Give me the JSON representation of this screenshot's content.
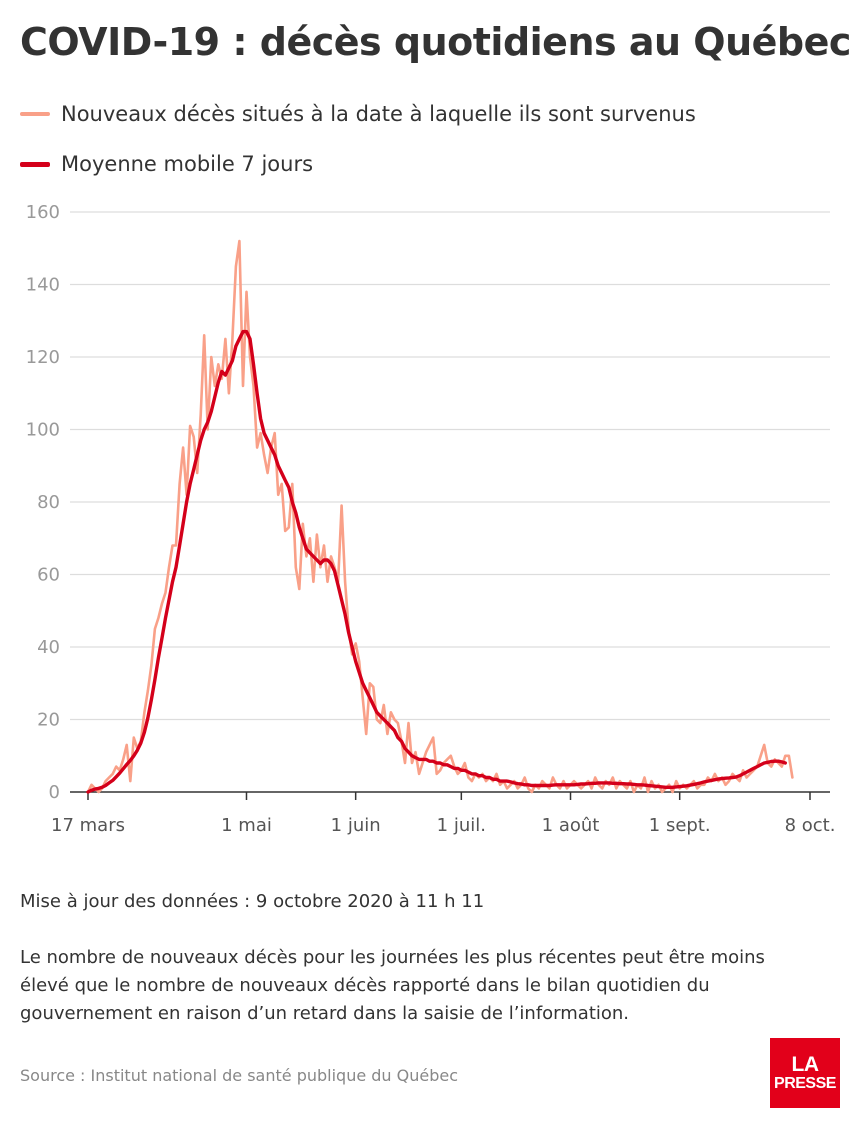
{
  "header": {
    "title": "COVID-19 : décès quotidiens au Québec"
  },
  "legend": {
    "items": [
      {
        "label": "Nouveaux décès situés à la date à laquelle ils sont survenus",
        "color": "#f9a088"
      },
      {
        "label": "Moyenne mobile 7 jours",
        "color": "#d4001a"
      }
    ]
  },
  "footer": {
    "updated": "Mise à jour des données : 9 octobre 2020 à 11 h 11",
    "note": "Le nombre de nouveaux décès pour les journées les plus récentes peut être moins élevé que le nombre de nouveaux décès rapporté dans le bilan quotidien du gouvernement en raison d’un retard dans la saisie de l’information.",
    "source": "Source : Institut national de santé publique du Québec",
    "logo_alt": "LA PRESSE"
  },
  "chart_data": {
    "type": "line",
    "title": "COVID-19 : décès quotidiens au Québec",
    "xlabel": "",
    "ylabel": "",
    "x_start": "2020-03-17",
    "x_end": "2020-10-08",
    "xlim": [
      "2020-03-17",
      "2020-10-08"
    ],
    "ylim": [
      0,
      160
    ],
    "y_ticks": [
      0,
      20,
      40,
      60,
      80,
      100,
      120,
      140,
      160
    ],
    "x_ticks": [
      {
        "date": "2020-03-17",
        "label": "17 mars"
      },
      {
        "date": "2020-05-01",
        "label": "1 mai"
      },
      {
        "date": "2020-06-01",
        "label": "1 juin"
      },
      {
        "date": "2020-07-01",
        "label": "1 juil."
      },
      {
        "date": "2020-08-01",
        "label": "1 août"
      },
      {
        "date": "2020-09-01",
        "label": "1 sept."
      },
      {
        "date": "2020-10-08",
        "label": "8 oct."
      }
    ],
    "grid": true,
    "legend_position": "top-left",
    "series": [
      {
        "name": "Nouveaux décès situés à la date à laquelle ils sont survenus",
        "color": "#f9a088",
        "values": [
          0,
          2,
          1,
          0,
          1,
          3,
          4,
          5,
          7,
          6,
          9,
          13,
          3,
          15,
          12,
          14,
          22,
          28,
          35,
          45,
          48,
          52,
          55,
          62,
          68,
          68,
          85,
          95,
          82,
          101,
          98,
          88,
          104,
          126,
          100,
          120,
          112,
          118,
          114,
          125,
          110,
          125,
          145,
          152,
          112,
          138,
          120,
          112,
          95,
          99,
          93,
          88,
          95,
          99,
          82,
          85,
          72,
          73,
          85,
          62,
          56,
          74,
          65,
          70,
          58,
          71,
          62,
          68,
          58,
          65,
          62,
          58,
          79,
          58,
          45,
          38,
          41,
          36,
          26,
          16,
          30,
          29,
          20,
          19,
          24,
          16,
          22,
          20,
          19,
          14,
          8,
          19,
          8,
          11,
          5,
          8,
          11,
          13,
          15,
          5,
          6,
          8,
          9,
          10,
          7,
          5,
          6,
          8,
          4,
          3,
          5,
          4,
          5,
          3,
          4,
          3,
          5,
          2,
          3,
          1,
          2,
          3,
          1,
          2,
          4,
          1,
          0,
          2,
          1,
          3,
          2,
          1,
          4,
          2,
          1,
          3,
          1,
          2,
          3,
          2,
          1,
          2,
          3,
          1,
          4,
          2,
          1,
          3,
          2,
          4,
          1,
          3,
          2,
          1,
          3,
          0,
          2,
          1,
          4,
          0,
          3,
          1,
          2,
          0,
          1,
          2,
          0,
          3,
          1,
          2,
          1,
          2,
          3,
          1,
          2,
          2,
          4,
          3,
          5,
          3,
          4,
          2,
          3,
          5,
          4,
          3,
          6,
          4,
          5,
          6,
          7,
          10,
          13,
          8,
          7,
          9,
          8,
          7,
          10,
          10,
          4
        ]
      },
      {
        "name": "Moyenne mobile 7 jours",
        "color": "#d4001a",
        "values": [
          0,
          0.5,
          0.8,
          1,
          1.3,
          1.8,
          2.5,
          3.2,
          4.2,
          5.2,
          6.4,
          7.6,
          8.7,
          10,
          11.5,
          13.5,
          16.5,
          20.5,
          25.5,
          31,
          37,
          42.5,
          48,
          53,
          58,
          62,
          68,
          74,
          80,
          85,
          89,
          93,
          97,
          100,
          102,
          105,
          109,
          113,
          116,
          115,
          117,
          119,
          123,
          125,
          127,
          127,
          125,
          118,
          110,
          103,
          99,
          97,
          95,
          93,
          90,
          88,
          86,
          84,
          80,
          77,
          73,
          70,
          67,
          66,
          65,
          64,
          63,
          64,
          64,
          63,
          61,
          57,
          53,
          49,
          44,
          40,
          36,
          33,
          30,
          28,
          26,
          24,
          22,
          21,
          20,
          19,
          18,
          17,
          15,
          14,
          12,
          11,
          10,
          9.5,
          9,
          9,
          9,
          8.5,
          8.5,
          8,
          8,
          7.5,
          7.5,
          7,
          6.5,
          6.5,
          6,
          6,
          5.5,
          5,
          5,
          4.5,
          4.5,
          4,
          4,
          3.5,
          3.5,
          3,
          3,
          3,
          2.8,
          2.5,
          2.3,
          2.2,
          2,
          2,
          1.8,
          1.8,
          1.8,
          1.8,
          1.8,
          1.8,
          1.9,
          2,
          2,
          2,
          2,
          2,
          2,
          2.1,
          2.2,
          2.2,
          2.3,
          2.4,
          2.4,
          2.5,
          2.5,
          2.5,
          2.5,
          2.4,
          2.4,
          2.3,
          2.3,
          2.2,
          2.2,
          2.1,
          2,
          2,
          1.9,
          1.8,
          1.7,
          1.6,
          1.5,
          1.4,
          1.3,
          1.3,
          1.3,
          1.4,
          1.5,
          1.6,
          1.7,
          1.9,
          2.1,
          2.3,
          2.5,
          2.8,
          3,
          3.2,
          3.4,
          3.6,
          3.7,
          3.8,
          3.9,
          4,
          4.1,
          4.5,
          5,
          5.5,
          6,
          6.5,
          7,
          7.5,
          8,
          8.2,
          8.4,
          8.5,
          8.5,
          8.3,
          8
        ]
      }
    ]
  }
}
